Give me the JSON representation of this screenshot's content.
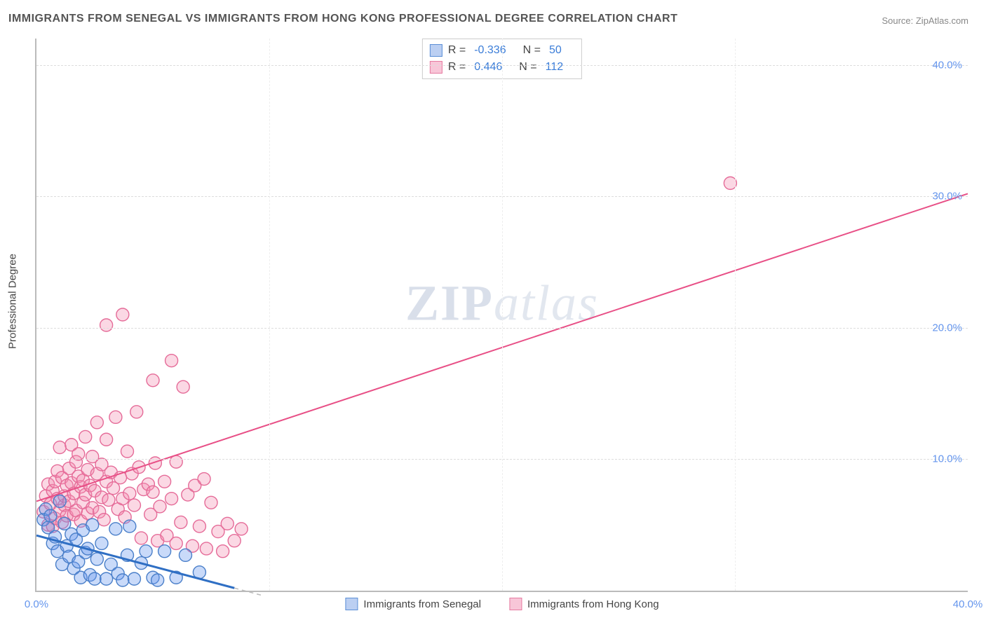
{
  "title": "IMMIGRANTS FROM SENEGAL VS IMMIGRANTS FROM HONG KONG PROFESSIONAL DEGREE CORRELATION CHART",
  "source_label": "Source: ZipAtlas.com",
  "ylabel": "Professional Degree",
  "watermark": "ZIPatlas",
  "chart": {
    "type": "scatter-correlation",
    "background_color": "#ffffff",
    "grid_color": "#dddddd",
    "axis_color": "#bbbbbb",
    "xlim": [
      0,
      40
    ],
    "ylim": [
      0,
      42
    ],
    "xtick_labels": [
      {
        "v": 0,
        "label": "0.0%"
      },
      {
        "v": 40,
        "label": "40.0%"
      }
    ],
    "ytick_labels": [
      {
        "v": 10,
        "label": "10.0%"
      },
      {
        "v": 20,
        "label": "20.0%"
      },
      {
        "v": 30,
        "label": "30.0%"
      },
      {
        "v": 40,
        "label": "40.0%"
      }
    ],
    "xtick_grid": [
      10,
      20,
      30
    ],
    "ytick_grid": [
      10,
      20,
      30,
      40
    ],
    "series": [
      {
        "name": "Immigrants from Senegal",
        "legend_label": "Immigrants from Senegal",
        "color_fill": "rgba(100,149,237,0.35)",
        "color_stroke": "#4a7fc9",
        "swatch_fill": "rgba(120,160,230,0.5)",
        "swatch_border": "#5b8fd6",
        "stat_R": "-0.336",
        "stat_N": "50",
        "marker_radius": 9,
        "trend": {
          "x1": 0,
          "y1": 4.2,
          "x2": 8.5,
          "y2": 0.2,
          "color": "#2f6fc4",
          "width": 3,
          "dash_ext": true
        },
        "points": [
          [
            0.3,
            5.4
          ],
          [
            0.4,
            6.2
          ],
          [
            0.5,
            4.8
          ],
          [
            0.6,
            5.7
          ],
          [
            0.7,
            3.6
          ],
          [
            0.8,
            4.1
          ],
          [
            0.9,
            3.0
          ],
          [
            1.0,
            6.8
          ],
          [
            1.1,
            2.0
          ],
          [
            1.2,
            5.1
          ],
          [
            1.3,
            3.4
          ],
          [
            1.4,
            2.6
          ],
          [
            1.5,
            4.3
          ],
          [
            1.6,
            1.7
          ],
          [
            1.7,
            3.9
          ],
          [
            1.8,
            2.2
          ],
          [
            1.9,
            1.0
          ],
          [
            2.0,
            4.6
          ],
          [
            2.1,
            2.9
          ],
          [
            2.2,
            3.2
          ],
          [
            2.3,
            1.2
          ],
          [
            2.4,
            5.0
          ],
          [
            2.5,
            0.9
          ],
          [
            2.6,
            2.4
          ],
          [
            2.8,
            3.6
          ],
          [
            3.0,
            0.9
          ],
          [
            3.2,
            2.0
          ],
          [
            3.4,
            4.7
          ],
          [
            3.5,
            1.3
          ],
          [
            3.7,
            0.8
          ],
          [
            3.9,
            2.7
          ],
          [
            4.0,
            4.9
          ],
          [
            4.2,
            0.9
          ],
          [
            4.5,
            2.1
          ],
          [
            4.7,
            3.0
          ],
          [
            5.0,
            1.0
          ],
          [
            5.2,
            0.8
          ],
          [
            5.5,
            3.0
          ],
          [
            6.0,
            1.0
          ],
          [
            6.4,
            2.7
          ],
          [
            7.0,
            1.4
          ]
        ]
      },
      {
        "name": "Immigrants from Hong Kong",
        "legend_label": "Immigrants from Hong Kong",
        "color_fill": "rgba(244,143,177,0.35)",
        "color_stroke": "#e56b98",
        "swatch_fill": "rgba(244,160,190,0.6)",
        "swatch_border": "#e67aa0",
        "stat_R": "0.446",
        "stat_N": "112",
        "marker_radius": 9,
        "trend": {
          "x1": 0,
          "y1": 6.8,
          "x2": 40,
          "y2": 30.2,
          "color": "#e84f86",
          "width": 2
        },
        "points": [
          [
            0.3,
            6.0
          ],
          [
            0.4,
            7.2
          ],
          [
            0.5,
            5.0
          ],
          [
            0.5,
            8.1
          ],
          [
            0.6,
            6.6
          ],
          [
            0.7,
            7.6
          ],
          [
            0.7,
            4.9
          ],
          [
            0.8,
            8.3
          ],
          [
            0.8,
            5.5
          ],
          [
            0.9,
            7.0
          ],
          [
            0.9,
            9.1
          ],
          [
            1.0,
            6.1
          ],
          [
            1.0,
            10.9
          ],
          [
            1.1,
            5.2
          ],
          [
            1.1,
            8.6
          ],
          [
            1.2,
            6.5
          ],
          [
            1.2,
            7.2
          ],
          [
            1.3,
            8.0
          ],
          [
            1.3,
            5.7
          ],
          [
            1.4,
            9.3
          ],
          [
            1.4,
            6.8
          ],
          [
            1.5,
            8.2
          ],
          [
            1.5,
            11.1
          ],
          [
            1.6,
            7.4
          ],
          [
            1.6,
            5.8
          ],
          [
            1.7,
            9.8
          ],
          [
            1.7,
            6.1
          ],
          [
            1.8,
            8.7
          ],
          [
            1.8,
            10.4
          ],
          [
            1.9,
            7.9
          ],
          [
            1.9,
            5.3
          ],
          [
            2.0,
            8.4
          ],
          [
            2.0,
            6.7
          ],
          [
            2.1,
            11.7
          ],
          [
            2.1,
            7.3
          ],
          [
            2.2,
            9.2
          ],
          [
            2.2,
            5.9
          ],
          [
            2.3,
            8.0
          ],
          [
            2.4,
            6.3
          ],
          [
            2.4,
            10.2
          ],
          [
            2.5,
            7.6
          ],
          [
            2.6,
            8.9
          ],
          [
            2.6,
            12.8
          ],
          [
            2.7,
            6.0
          ],
          [
            2.8,
            9.6
          ],
          [
            2.8,
            7.1
          ],
          [
            2.9,
            5.4
          ],
          [
            3.0,
            8.3
          ],
          [
            3.0,
            11.5
          ],
          [
            3.1,
            6.9
          ],
          [
            3.2,
            9.0
          ],
          [
            3.3,
            7.8
          ],
          [
            3.4,
            13.2
          ],
          [
            3.5,
            6.2
          ],
          [
            3.6,
            8.6
          ],
          [
            3.7,
            7.0
          ],
          [
            3.8,
            5.6
          ],
          [
            3.9,
            10.6
          ],
          [
            4.0,
            7.4
          ],
          [
            4.1,
            8.9
          ],
          [
            4.2,
            6.5
          ],
          [
            4.3,
            13.6
          ],
          [
            4.4,
            9.4
          ],
          [
            4.5,
            4.0
          ],
          [
            4.6,
            7.7
          ],
          [
            4.8,
            8.1
          ],
          [
            4.9,
            5.8
          ],
          [
            5.0,
            16.0
          ],
          [
            5.0,
            7.5
          ],
          [
            5.1,
            9.7
          ],
          [
            5.2,
            3.8
          ],
          [
            5.3,
            6.4
          ],
          [
            5.5,
            8.3
          ],
          [
            5.6,
            4.2
          ],
          [
            5.8,
            17.5
          ],
          [
            5.8,
            7.0
          ],
          [
            6.0,
            3.6
          ],
          [
            6.0,
            9.8
          ],
          [
            6.2,
            5.2
          ],
          [
            6.3,
            15.5
          ],
          [
            6.5,
            7.3
          ],
          [
            6.7,
            3.4
          ],
          [
            6.8,
            8.0
          ],
          [
            7.0,
            4.9
          ],
          [
            7.2,
            8.5
          ],
          [
            7.3,
            3.2
          ],
          [
            7.5,
            6.7
          ],
          [
            7.8,
            4.5
          ],
          [
            8.0,
            3.0
          ],
          [
            8.2,
            5.1
          ],
          [
            8.5,
            3.8
          ],
          [
            8.8,
            4.7
          ],
          [
            3.0,
            20.2
          ],
          [
            3.7,
            21.0
          ],
          [
            29.8,
            31.0
          ]
        ]
      }
    ]
  }
}
